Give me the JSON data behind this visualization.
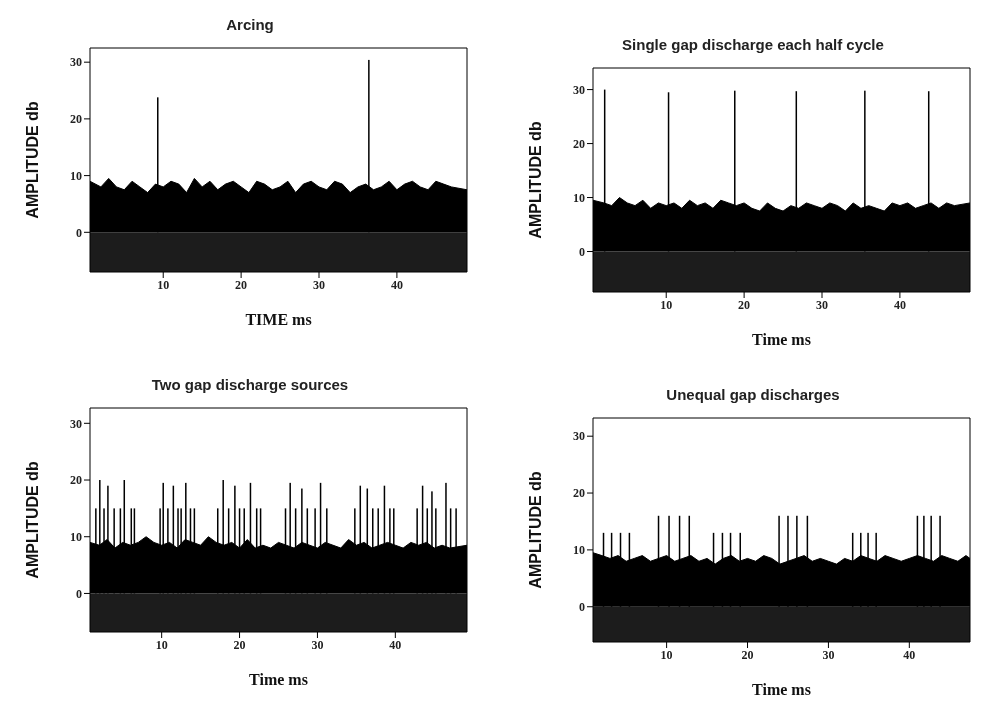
{
  "chart_data": [
    {
      "type": "area",
      "title": "Arcing",
      "xlabel": "TIME ms",
      "ylabel": "AMPLITUDE db",
      "xlim": [
        0.6,
        49
      ],
      "xticks": [
        10,
        20,
        30,
        40
      ],
      "ylim": [
        -7,
        32.5
      ],
      "yticks": [
        0,
        10,
        20,
        30
      ],
      "bands": [
        {
          "axis": "y",
          "from": -7,
          "to": 0,
          "color": "#1c1c1c"
        }
      ],
      "series": [
        {
          "color": "#000000",
          "x": [
            0.6,
            2,
            3,
            4,
            5,
            6,
            7,
            8,
            9,
            10,
            11,
            12,
            13,
            14,
            15,
            16,
            17,
            18,
            19,
            20,
            21,
            22,
            23,
            24,
            25,
            26,
            27,
            28,
            29,
            30,
            31,
            32,
            33,
            34,
            35,
            36,
            37,
            38,
            39,
            40,
            41,
            42,
            43,
            44,
            45,
            46,
            47,
            49
          ],
          "values": [
            9,
            8,
            9.5,
            8,
            7.5,
            9,
            8,
            7,
            8.5,
            8,
            9,
            8.5,
            7,
            9.5,
            8,
            9,
            7.5,
            8.5,
            9,
            8,
            7,
            9,
            8.5,
            7.5,
            8,
            9,
            7,
            8.5,
            9,
            8,
            7.5,
            9,
            8.5,
            7,
            8,
            8.5,
            7.5,
            8,
            9,
            7.5,
            8.5,
            9,
            8,
            7.5,
            9,
            8.5,
            8,
            7.5
          ]
        },
        {
          "type": "bar",
          "color": "#000000",
          "x": [
            9.3,
            36.4
          ],
          "values": [
            23.8,
            30.4
          ]
        }
      ]
    },
    {
      "type": "area",
      "title": "Single gap discharge each half cycle",
      "xlabel": "Time ms",
      "ylabel": "AMPLITUDE db",
      "xlim": [
        0.6,
        49
      ],
      "xticks": [
        10,
        20,
        30,
        40
      ],
      "ylim": [
        -7.5,
        34
      ],
      "yticks": [
        0,
        10,
        20,
        30
      ],
      "bands": [
        {
          "axis": "y",
          "from": -7.5,
          "to": 0,
          "color": "#1c1c1c"
        }
      ],
      "series": [
        {
          "color": "#000000",
          "x": [
            0.6,
            2,
            3,
            4,
            5,
            6,
            7,
            8,
            9,
            10,
            11,
            12,
            13,
            14,
            15,
            16,
            17,
            18,
            19,
            20,
            21,
            22,
            23,
            24,
            25,
            26,
            27,
            28,
            29,
            30,
            31,
            32,
            33,
            34,
            35,
            36,
            37,
            38,
            39,
            40,
            41,
            42,
            43,
            44,
            45,
            46,
            47,
            49
          ],
          "values": [
            9.5,
            9,
            8.5,
            10,
            9,
            8.5,
            9.5,
            8,
            9,
            8.5,
            9,
            8,
            9.5,
            8.5,
            9,
            8,
            9.5,
            9,
            8.5,
            9,
            8,
            7.5,
            9,
            8,
            7.5,
            8.5,
            8,
            9,
            8.5,
            8,
            9,
            8.5,
            7.5,
            9,
            8,
            8.5,
            8,
            7.5,
            9,
            8.5,
            9,
            8,
            8.5,
            9,
            8,
            9,
            8.5,
            9
          ]
        },
        {
          "type": "bar",
          "color": "#000000",
          "x": [
            2.1,
            10.3,
            18.8,
            26.7,
            35.5,
            43.7
          ],
          "values": [
            30,
            29.5,
            29.8,
            29.7,
            29.8,
            29.7
          ]
        }
      ]
    },
    {
      "type": "area",
      "title": "Two gap discharge sources",
      "xlabel": "Time ms",
      "ylabel": "AMPLITUDE db",
      "xlim": [
        0.8,
        49.2
      ],
      "xticks": [
        10,
        20,
        30,
        40
      ],
      "ylim": [
        -6.8,
        32.7
      ],
      "yticks": [
        0,
        10,
        20,
        30
      ],
      "bands": [
        {
          "axis": "y",
          "from": -6.8,
          "to": 0,
          "color": "#1c1c1c"
        }
      ],
      "series": [
        {
          "color": "#000000",
          "x": [
            0.8,
            2,
            3,
            4,
            5,
            6,
            7,
            8,
            9,
            10,
            11,
            12,
            13,
            14,
            15,
            16,
            17,
            18,
            19,
            20,
            21,
            22,
            23,
            24,
            25,
            26,
            27,
            28,
            29,
            30,
            31,
            32,
            33,
            34,
            35,
            36,
            37,
            38,
            39,
            40,
            41,
            42,
            43,
            44,
            45,
            46,
            47,
            49.2
          ],
          "values": [
            9,
            8.5,
            9.5,
            8,
            9,
            8.5,
            9,
            10,
            9,
            8.5,
            9,
            8,
            9.5,
            9,
            8.5,
            10,
            9,
            8.5,
            9,
            8,
            9.5,
            8,
            8.5,
            8,
            9,
            8.5,
            8,
            9,
            8.5,
            8,
            9,
            8.5,
            8,
            9.5,
            8.5,
            9,
            8,
            8.5,
            9,
            8.5,
            8,
            9,
            8.5,
            9,
            8,
            8.5,
            8,
            8.5
          ]
        },
        {
          "type": "bar",
          "color": "#000000",
          "x": [
            1.55,
            2.06,
            2.6,
            3.1,
            3.9,
            4.7,
            5.2,
            6.1,
            6.5,
            9.8,
            10.2,
            10.8,
            11.5,
            12.1,
            12.5,
            13.1,
            13.7,
            14.2,
            17.2,
            17.9,
            18.6,
            19.4,
            20,
            20.6,
            21.4,
            22.2,
            22.7,
            25.9,
            26.5,
            27.2,
            28,
            28.7,
            29.7,
            30.4,
            31.2,
            34.8,
            35.5,
            36.4,
            37.1,
            37.8,
            38.6,
            39.3,
            39.8,
            42.8,
            43.5,
            44.1,
            44.7,
            45.2,
            46.5,
            47.1,
            47.8
          ],
          "values": [
            15,
            20,
            15,
            19,
            15,
            15,
            20,
            15,
            15,
            15,
            19.5,
            15,
            19,
            15,
            15,
            19.5,
            15,
            15,
            15,
            20,
            15,
            19,
            15,
            15,
            19.5,
            15,
            15,
            15,
            19.5,
            15,
            18.5,
            15,
            15,
            19.5,
            15,
            15,
            19,
            18.5,
            15,
            15,
            19,
            15,
            15,
            15,
            19,
            15,
            18,
            15,
            19.5,
            15,
            15
          ]
        }
      ]
    },
    {
      "type": "area",
      "title": "Unequal gap discharges",
      "xlabel": "Time ms",
      "ylabel": "AMPLITUDE db",
      "xlim": [
        0.9,
        47.5
      ],
      "xticks": [
        10,
        20,
        30,
        40
      ],
      "ylim": [
        -6.2,
        33.2
      ],
      "yticks": [
        0,
        10,
        20,
        30
      ],
      "bands": [
        {
          "axis": "y",
          "from": -6.2,
          "to": 0,
          "color": "#1c1c1c"
        }
      ],
      "series": [
        {
          "color": "#000000",
          "x": [
            0.9,
            2,
            3,
            4,
            5,
            6,
            7,
            8,
            9,
            10,
            11,
            12,
            13,
            14,
            15,
            16,
            17,
            18,
            19,
            20,
            21,
            22,
            23,
            24,
            25,
            26,
            27,
            28,
            29,
            30,
            31,
            32,
            33,
            34,
            35,
            36,
            37,
            38,
            39,
            40,
            41,
            42,
            43,
            44,
            45,
            46,
            47,
            47.5
          ],
          "values": [
            9.5,
            9,
            8.5,
            9,
            8,
            8.5,
            9,
            8,
            8.5,
            9,
            8,
            8.5,
            9,
            8,
            8.5,
            7.5,
            8.5,
            9,
            8,
            8.5,
            8,
            9,
            8.5,
            7.5,
            8,
            8.5,
            9,
            8,
            8.5,
            8,
            7.5,
            8.5,
            8,
            9,
            8.5,
            8,
            9,
            8.5,
            8,
            8.5,
            9,
            8.5,
            8,
            9,
            8.5,
            8,
            9,
            8.5
          ]
        },
        {
          "type": "bar",
          "color": "#000000",
          "x": [
            2.2,
            3.2,
            4.3,
            5.4,
            9,
            10.3,
            11.6,
            12.8,
            15.8,
            16.9,
            17.9,
            19.1,
            23.9,
            25,
            26.1,
            27.4,
            33,
            34,
            34.9,
            35.9,
            41,
            41.8,
            42.7,
            43.8
          ],
          "values": [
            13,
            13,
            13,
            13,
            16,
            16,
            16,
            16,
            13,
            13,
            13,
            13,
            16,
            16,
            16,
            16,
            13,
            13,
            13,
            13,
            16,
            16,
            16,
            16
          ]
        }
      ]
    }
  ]
}
